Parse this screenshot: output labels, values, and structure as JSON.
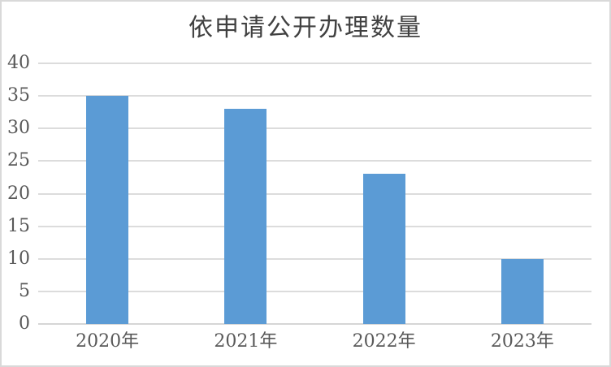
{
  "chart_data": {
    "type": "bar",
    "title": "依申请公开办理数量",
    "categories": [
      "2020年",
      "2021年",
      "2022年",
      "2023年"
    ],
    "values": [
      35,
      33,
      23,
      10
    ],
    "xlabel": "",
    "ylabel": "",
    "ylim": [
      0,
      40
    ],
    "ytick_step": 5,
    "yticks": [
      0,
      5,
      10,
      15,
      20,
      25,
      30,
      35,
      40
    ],
    "grid": true,
    "legend_position": "none",
    "colors": {
      "bar": "#5B9BD5",
      "gridline": "#DCDCDC",
      "axis_line": "#D6D6D6",
      "tick_label": "#595959",
      "title": "#404040",
      "chart_border": "#D9D9D9",
      "background": "#FFFFFF"
    }
  }
}
